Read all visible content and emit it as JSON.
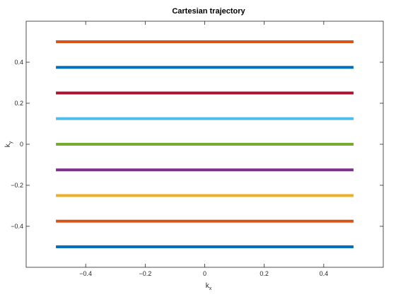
{
  "chart_data": {
    "type": "line",
    "title": "Cartesian trajectory",
    "xlabel": "k",
    "xlabel_subscript": "x",
    "ylabel": "k",
    "ylabel_subscript": "y",
    "xlim": [
      -0.6,
      0.6
    ],
    "ylim": [
      -0.6,
      0.6
    ],
    "xticks": [
      -0.4,
      -0.2,
      0,
      0.2,
      0.4
    ],
    "xtick_labels": [
      "−0.4",
      "−0.2",
      "0",
      "0.2",
      "0.4"
    ],
    "yticks": [
      -0.4,
      -0.2,
      0,
      0.2,
      0.4
    ],
    "ytick_labels": [
      "−0.4",
      "−0.2",
      "0",
      "0.2",
      "0.4"
    ],
    "grid": false,
    "series": [
      {
        "x": [
          -0.5,
          0.5
        ],
        "y": [
          -0.5,
          -0.5
        ],
        "color": "#0072BD"
      },
      {
        "x": [
          -0.5,
          0.5
        ],
        "y": [
          -0.375,
          -0.375
        ],
        "color": "#D95319"
      },
      {
        "x": [
          -0.5,
          0.5
        ],
        "y": [
          -0.25,
          -0.25
        ],
        "color": "#EDB120"
      },
      {
        "x": [
          -0.5,
          0.5
        ],
        "y": [
          -0.125,
          -0.125
        ],
        "color": "#7E2F8E"
      },
      {
        "x": [
          -0.5,
          0.5
        ],
        "y": [
          0,
          0
        ],
        "color": "#77AC30"
      },
      {
        "x": [
          -0.5,
          0.5
        ],
        "y": [
          0.125,
          0.125
        ],
        "color": "#4DBEEE"
      },
      {
        "x": [
          -0.5,
          0.5
        ],
        "y": [
          0.25,
          0.25
        ],
        "color": "#A2142F"
      },
      {
        "x": [
          -0.5,
          0.5
        ],
        "y": [
          0.375,
          0.375
        ],
        "color": "#0072BD"
      },
      {
        "x": [
          -0.5,
          0.5
        ],
        "y": [
          0.5,
          0.5
        ],
        "color": "#D95319"
      }
    ]
  }
}
